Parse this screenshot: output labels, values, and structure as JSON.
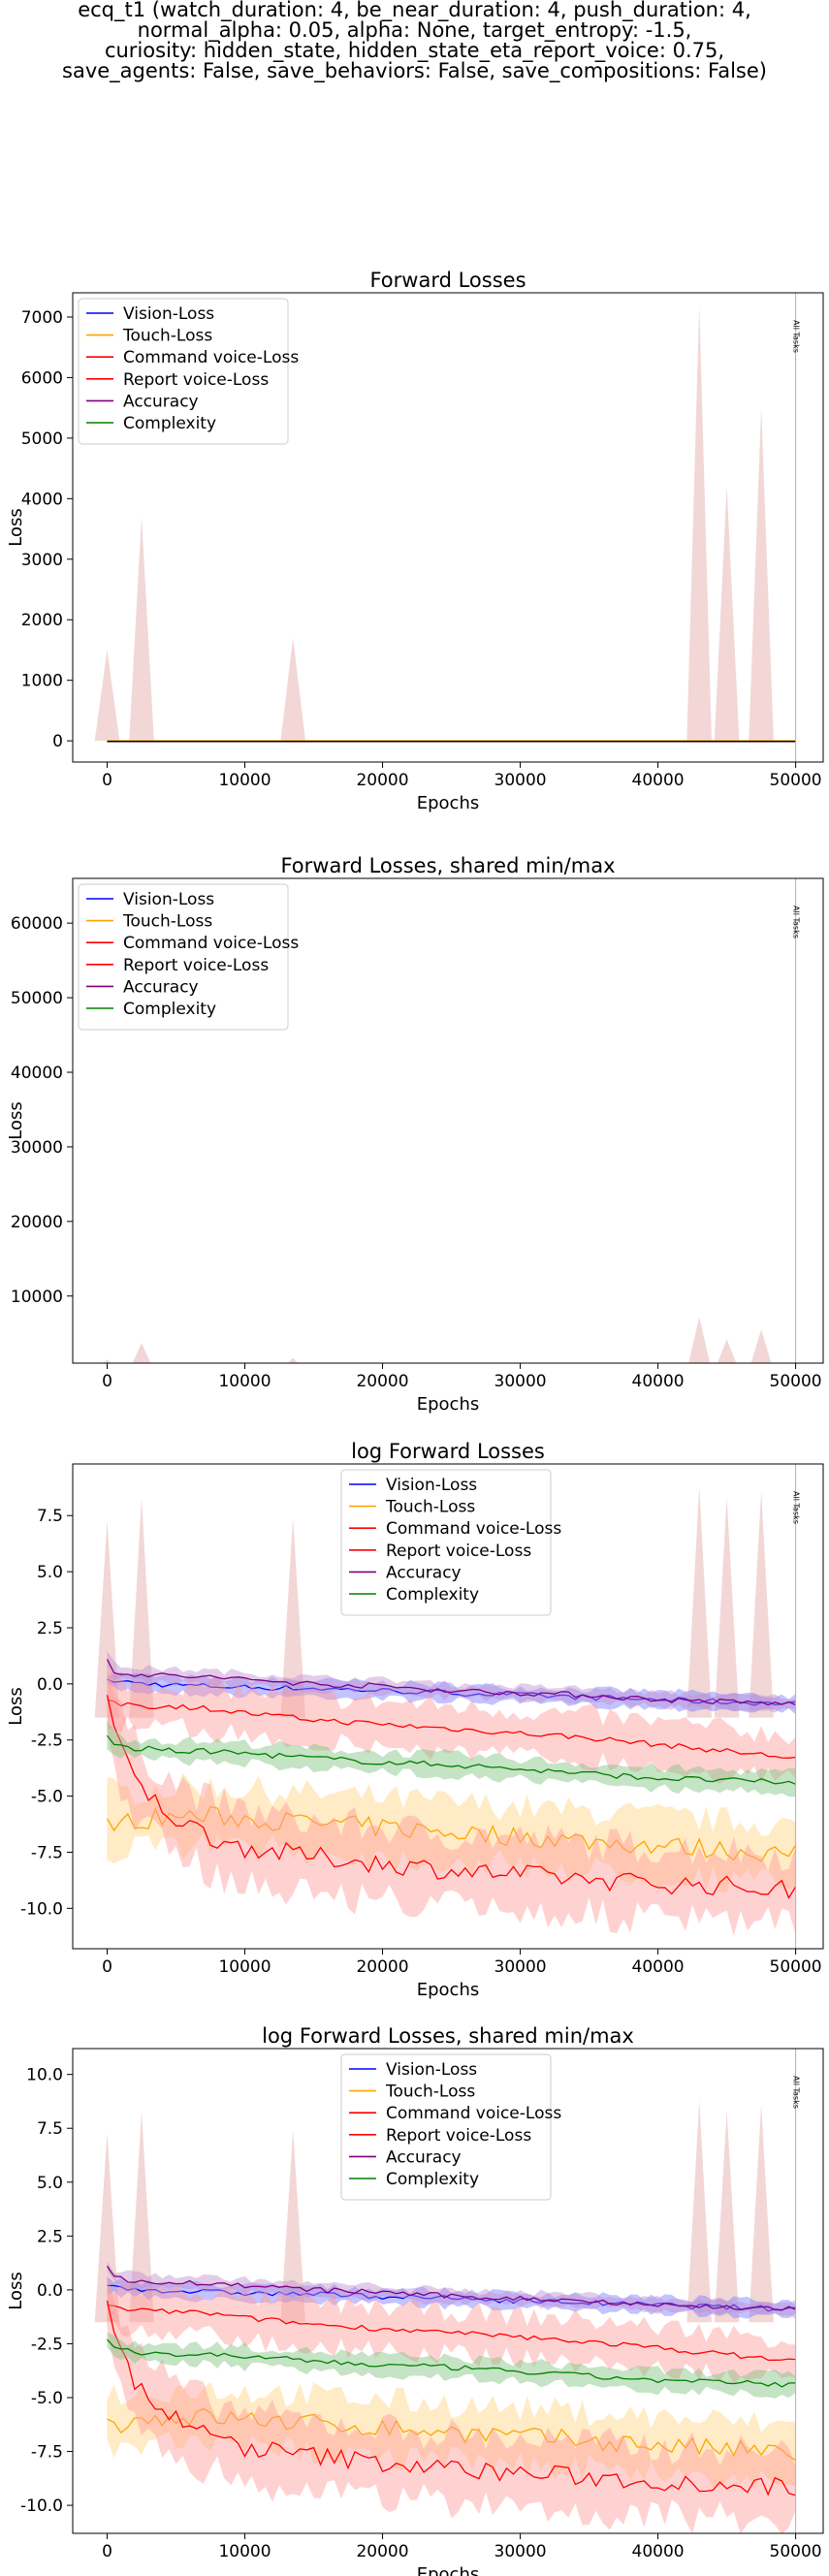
{
  "figure": {
    "suptitle_lines": [
      "ecq_t1 (watch_duration: 4, be_near_duration: 4, push_duration: 4,",
      "normal_alpha: 0.05, alpha: None, target_entropy: -1.5,",
      "curiosity: hidden_state, hidden_state_eta_report_voice: 0.75,",
      "save_agents: False, save_behaviors: False, save_compositions: False)"
    ]
  },
  "chart_data": [
    {
      "type": "line",
      "title": "Forward Losses",
      "xlabel": "Epochs",
      "ylabel": "Loss",
      "xlim": [
        -2500,
        52000
      ],
      "ylim": [
        -350,
        7400
      ],
      "xticks": [
        0,
        10000,
        20000,
        30000,
        40000,
        50000
      ],
      "yticks": [
        0,
        1000,
        2000,
        3000,
        4000,
        5000,
        6000,
        7000
      ],
      "log_view": false,
      "grid": false,
      "legend_position": "top-left",
      "vline": {
        "x": 50000,
        "label": "All Tasks"
      },
      "series": [
        {
          "name": "Vision-Loss",
          "color": "#0000ff",
          "values": [
            1.0,
            0.3,
            0.2,
            0.1,
            0.0,
            -0.3,
            -0.5,
            -0.8,
            -0.9,
            -1.0
          ]
        },
        {
          "name": "Touch-Loss",
          "color": "#ffa500",
          "values": [
            -6.0,
            -6.1,
            -5.9,
            -6.0,
            -6.2,
            -6.5,
            -6.8,
            -7.0,
            -7.3,
            -7.5
          ]
        },
        {
          "name": "Command voice-Loss",
          "color": "#ff0000",
          "values": [
            -0.8,
            -0.9,
            -1.0,
            -1.2,
            -1.5,
            -1.8,
            -2.0,
            -2.3,
            -2.8,
            -3.3
          ]
        },
        {
          "name": "Report voice-Loss",
          "color": "#ff0000",
          "values": [
            -0.5,
            -3.5,
            -5.5,
            -6.8,
            -7.5,
            -8.0,
            -8.3,
            -8.5,
            -8.8,
            -9.0
          ]
        },
        {
          "name": "Accuracy",
          "color": "#800080",
          "values": [
            1.1,
            0.4,
            0.3,
            0.1,
            -0.1,
            -0.3,
            -0.5,
            -0.7,
            -0.85,
            -0.9
          ]
        },
        {
          "name": "Complexity",
          "color": "#008000",
          "values": [
            -2.3,
            -2.8,
            -2.9,
            -3.1,
            -3.3,
            -3.5,
            -3.8,
            -4.0,
            -4.2,
            -4.4
          ]
        }
      ],
      "x": [
        0,
        2500,
        5000,
        10000,
        15000,
        20000,
        25000,
        30000,
        40000,
        50000
      ],
      "spikes": [
        {
          "x": 0,
          "peak": 1500
        },
        {
          "x": 2500,
          "peak": 3700
        },
        {
          "x": 13500,
          "peak": 1700
        },
        {
          "x": 43000,
          "peak": 7200
        },
        {
          "x": 45000,
          "peak": 4200
        },
        {
          "x": 47500,
          "peak": 5500
        }
      ]
    },
    {
      "type": "line",
      "title": "Forward Losses, shared min/max",
      "xlabel": "Epochs",
      "ylabel": "Loss",
      "xlim": [
        -2500,
        52000
      ],
      "ylim": [
        1000,
        66000
      ],
      "xticks": [
        0,
        10000,
        20000,
        30000,
        40000,
        50000
      ],
      "yticks": [
        10000,
        20000,
        30000,
        40000,
        50000,
        60000
      ],
      "log_view": false,
      "grid": false,
      "legend_position": "top-left",
      "vline": {
        "x": 50000,
        "label": "All Tasks"
      },
      "series": [
        {
          "name": "Vision-Loss",
          "color": "#0000ff"
        },
        {
          "name": "Touch-Loss",
          "color": "#ffa500"
        },
        {
          "name": "Command voice-Loss",
          "color": "#ff0000"
        },
        {
          "name": "Report voice-Loss",
          "color": "#ff0000"
        },
        {
          "name": "Accuracy",
          "color": "#800080"
        },
        {
          "name": "Complexity",
          "color": "#008000"
        }
      ],
      "spikes": [
        {
          "x": 0,
          "peak": 1500
        },
        {
          "x": 2500,
          "peak": 3700
        },
        {
          "x": 13500,
          "peak": 1700
        },
        {
          "x": 43000,
          "peak": 7200
        },
        {
          "x": 45000,
          "peak": 4200
        },
        {
          "x": 47500,
          "peak": 5500
        }
      ]
    },
    {
      "type": "line",
      "title": "log Forward Losses",
      "xlabel": "Epochs",
      "ylabel": "Loss",
      "xlim": [
        -2500,
        52000
      ],
      "ylim": [
        -11.8,
        9.8
      ],
      "xticks": [
        0,
        10000,
        20000,
        30000,
        40000,
        50000
      ],
      "yticks": [
        -10.0,
        -7.5,
        -5.0,
        -2.5,
        0.0,
        2.5,
        5.0,
        7.5
      ],
      "log_view": true,
      "grid": false,
      "legend_position": "top-center",
      "vline": {
        "x": 50000,
        "label": "All Tasks"
      },
      "x": [
        0,
        500,
        1000,
        2000,
        3000,
        5000,
        7500,
        10000,
        15000,
        20000,
        25000,
        30000,
        35000,
        40000,
        45000,
        50000
      ],
      "series": [
        {
          "name": "Vision-Loss",
          "color": "#0000ff",
          "values": [
            0.2,
            0.15,
            0.1,
            0.05,
            0.0,
            -0.05,
            -0.1,
            -0.15,
            -0.2,
            -0.3,
            -0.4,
            -0.5,
            -0.6,
            -0.7,
            -0.8,
            -0.9
          ]
        },
        {
          "name": "Touch-Loss",
          "color": "#ffa500",
          "values": [
            -6.0,
            -6.1,
            -6.2,
            -6.1,
            -6.0,
            -5.9,
            -5.9,
            -6.0,
            -6.2,
            -6.4,
            -6.6,
            -6.8,
            -7.0,
            -7.2,
            -7.4,
            -7.6
          ]
        },
        {
          "name": "Command voice-Loss",
          "color": "#ff0000",
          "values": [
            -0.7,
            -0.8,
            -0.9,
            -0.9,
            -1.0,
            -1.0,
            -1.1,
            -1.3,
            -1.6,
            -1.8,
            -2.0,
            -2.2,
            -2.4,
            -2.7,
            -3.0,
            -3.3
          ]
        },
        {
          "name": "Report voice-Loss",
          "color": "#ff0000",
          "values": [
            -0.5,
            -2.0,
            -3.0,
            -4.2,
            -5.0,
            -6.0,
            -6.8,
            -7.3,
            -7.7,
            -8.0,
            -8.3,
            -8.5,
            -8.7,
            -8.9,
            -9.0,
            -9.2
          ]
        },
        {
          "name": "Accuracy",
          "color": "#800080",
          "values": [
            1.1,
            0.6,
            0.5,
            0.45,
            0.4,
            0.35,
            0.3,
            0.2,
            0.0,
            -0.1,
            -0.3,
            -0.4,
            -0.5,
            -0.7,
            -0.8,
            -0.9
          ]
        },
        {
          "name": "Complexity",
          "color": "#008000",
          "values": [
            -2.3,
            -2.6,
            -2.8,
            -2.9,
            -2.9,
            -3.0,
            -3.0,
            -3.1,
            -3.3,
            -3.5,
            -3.6,
            -3.8,
            -4.0,
            -4.2,
            -4.3,
            -4.4
          ]
        }
      ],
      "spikes": [
        {
          "x": 0,
          "peak": 7.3
        },
        {
          "x": 2500,
          "peak": 8.3
        },
        {
          "x": 13500,
          "peak": 7.4
        },
        {
          "x": 43000,
          "peak": 8.8
        },
        {
          "x": 45000,
          "peak": 8.3
        },
        {
          "x": 47500,
          "peak": 8.6
        }
      ]
    },
    {
      "type": "line",
      "title": "log Forward Losses, shared min/max",
      "xlabel": "Epochs",
      "ylabel": "Loss",
      "xlim": [
        -2500,
        52000
      ],
      "ylim": [
        -11.3,
        11.2
      ],
      "xticks": [
        0,
        10000,
        20000,
        30000,
        40000,
        50000
      ],
      "yticks": [
        -10.0,
        -7.5,
        -5.0,
        -2.5,
        0.0,
        2.5,
        5.0,
        7.5,
        10.0
      ],
      "log_view": true,
      "grid": false,
      "legend_position": "top-center",
      "vline": {
        "x": 50000,
        "label": "All Tasks"
      },
      "x": [
        0,
        500,
        1000,
        2000,
        3000,
        5000,
        7500,
        10000,
        15000,
        20000,
        25000,
        30000,
        35000,
        40000,
        45000,
        50000
      ],
      "series": [
        {
          "name": "Vision-Loss",
          "color": "#0000ff",
          "values": [
            0.2,
            0.15,
            0.1,
            0.05,
            0.0,
            -0.05,
            -0.1,
            -0.15,
            -0.2,
            -0.3,
            -0.4,
            -0.5,
            -0.6,
            -0.7,
            -0.8,
            -0.9
          ]
        },
        {
          "name": "Touch-Loss",
          "color": "#ffa500",
          "values": [
            -6.0,
            -6.1,
            -6.2,
            -6.1,
            -6.0,
            -5.9,
            -5.9,
            -6.0,
            -6.2,
            -6.4,
            -6.6,
            -6.8,
            -7.0,
            -7.2,
            -7.4,
            -7.6
          ]
        },
        {
          "name": "Command voice-Loss",
          "color": "#ff0000",
          "values": [
            -0.7,
            -0.8,
            -0.9,
            -0.9,
            -1.0,
            -1.0,
            -1.1,
            -1.3,
            -1.6,
            -1.8,
            -2.0,
            -2.2,
            -2.4,
            -2.7,
            -3.0,
            -3.3
          ]
        },
        {
          "name": "Report voice-Loss",
          "color": "#ff0000",
          "values": [
            -0.5,
            -2.0,
            -3.0,
            -4.2,
            -5.0,
            -6.0,
            -6.8,
            -7.3,
            -7.7,
            -8.0,
            -8.3,
            -8.5,
            -8.7,
            -8.9,
            -9.0,
            -9.2
          ]
        },
        {
          "name": "Accuracy",
          "color": "#800080",
          "values": [
            1.1,
            0.6,
            0.5,
            0.45,
            0.4,
            0.35,
            0.3,
            0.2,
            0.0,
            -0.1,
            -0.3,
            -0.4,
            -0.5,
            -0.7,
            -0.8,
            -0.9
          ]
        },
        {
          "name": "Complexity",
          "color": "#008000",
          "values": [
            -2.3,
            -2.6,
            -2.8,
            -2.9,
            -2.9,
            -3.0,
            -3.0,
            -3.1,
            -3.3,
            -3.5,
            -3.6,
            -3.8,
            -4.0,
            -4.2,
            -4.3,
            -4.4
          ]
        }
      ],
      "spikes": [
        {
          "x": 0,
          "peak": 7.3
        },
        {
          "x": 2500,
          "peak": 8.3
        },
        {
          "x": 13500,
          "peak": 7.4
        },
        {
          "x": 43000,
          "peak": 8.8
        },
        {
          "x": 45000,
          "peak": 8.3
        },
        {
          "x": 47500,
          "peak": 8.6
        }
      ]
    }
  ]
}
